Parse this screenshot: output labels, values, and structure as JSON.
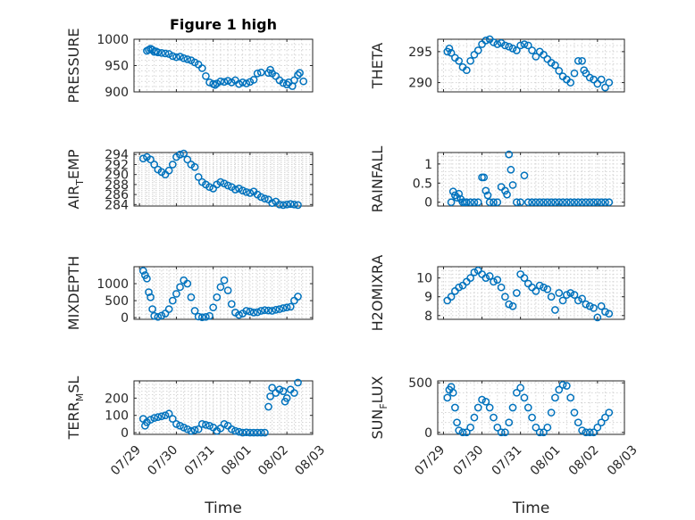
{
  "figure": {
    "width": 778,
    "height": 583
  },
  "chart_data": [
    {
      "type": "scatter",
      "title": "Figure 1 high",
      "ylabel": "PRESSURE",
      "ylim": [
        900,
        1000
      ],
      "yticks": [
        900,
        950,
        1000
      ],
      "ytick_labels": [
        "900",
        "950",
        "1000"
      ],
      "grid": true,
      "series": [
        {
          "x": [
            0.2,
            0.25,
            0.3,
            0.35,
            0.4,
            0.45,
            0.5,
            0.6,
            0.7,
            0.8,
            0.9,
            1.0,
            1.1,
            1.2,
            1.3,
            1.4,
            1.5,
            1.6,
            1.7,
            1.8,
            1.9,
            2.0,
            2.05,
            2.1,
            2.2,
            2.3,
            2.4,
            2.5,
            2.6,
            2.7,
            2.8,
            2.9,
            3.0,
            3.1,
            3.2,
            3.3,
            3.5,
            3.55,
            3.6,
            3.7,
            3.8,
            3.9,
            4.0,
            4.05,
            4.15,
            4.2,
            4.3,
            4.35,
            4.45
          ],
          "y": [
            978,
            980,
            982,
            980,
            976,
            977,
            975,
            974,
            973,
            972,
            968,
            966,
            967,
            964,
            962,
            960,
            956,
            952,
            945,
            930,
            918,
            915,
            913,
            916,
            920,
            919,
            921,
            918,
            922,
            915,
            918,
            916,
            919,
            923,
            935,
            937,
            936,
            942,
            935,
            930,
            922,
            917,
            914,
            918,
            911,
            922,
            932,
            936,
            920
          ]
        }
      ]
    },
    {
      "type": "scatter",
      "ylabel": "THETA",
      "ylim": [
        288.5,
        297
      ],
      "yticks": [
        290,
        295
      ],
      "ytick_labels": [
        "290",
        "295"
      ],
      "grid": true,
      "series": [
        {
          "x": [
            0.1,
            0.15,
            0.2,
            0.3,
            0.4,
            0.5,
            0.6,
            0.7,
            0.8,
            0.9,
            1.0,
            1.1,
            1.2,
            1.3,
            1.4,
            1.5,
            1.6,
            1.7,
            1.8,
            1.9,
            2.0,
            2.1,
            2.2,
            2.3,
            2.4,
            2.5,
            2.6,
            2.7,
            2.8,
            2.9,
            3.0,
            3.1,
            3.2,
            3.3,
            3.4,
            3.5,
            3.6,
            3.65,
            3.7,
            3.8,
            3.9,
            4.0,
            4.1,
            4.2,
            4.3
          ],
          "y": [
            295.0,
            295.5,
            294.8,
            294.0,
            293.5,
            292.5,
            292.0,
            293.5,
            294.5,
            295.2,
            296.2,
            296.8,
            297.0,
            296.5,
            296.2,
            296.4,
            296.0,
            295.8,
            295.5,
            295.2,
            296.0,
            296.2,
            296.0,
            295.2,
            294.2,
            295.0,
            294.5,
            293.8,
            293.2,
            292.8,
            291.9,
            291.0,
            290.5,
            290.0,
            291.5,
            293.5,
            293.5,
            292.0,
            291.5,
            290.8,
            290.5,
            289.8,
            290.5,
            289.2,
            290.0
          ]
        }
      ]
    },
    {
      "type": "scatter",
      "ylabel": "AIR_TEMP",
      "ylim": [
        283.7,
        294.4
      ],
      "yticks": [
        284,
        286,
        288,
        290,
        292,
        294
      ],
      "ytick_labels": [
        "284",
        "286",
        "288",
        "290",
        "292",
        "294"
      ],
      "grid": true,
      "series": [
        {
          "x": [
            0.1,
            0.2,
            0.3,
            0.4,
            0.5,
            0.6,
            0.7,
            0.8,
            0.9,
            1.0,
            1.1,
            1.2,
            1.3,
            1.4,
            1.5,
            1.6,
            1.7,
            1.8,
            1.9,
            2.0,
            2.1,
            2.2,
            2.3,
            2.4,
            2.5,
            2.6,
            2.7,
            2.8,
            2.9,
            3.0,
            3.1,
            3.2,
            3.3,
            3.4,
            3.5,
            3.6,
            3.7,
            3.8,
            3.9,
            4.0,
            4.1,
            4.2,
            4.3
          ],
          "y": [
            293.2,
            293.5,
            293.0,
            292.0,
            291.0,
            290.5,
            290.0,
            290.8,
            292.0,
            293.5,
            294.0,
            294.2,
            293.0,
            292.0,
            291.5,
            289.5,
            288.5,
            288.0,
            287.5,
            287.2,
            288.0,
            288.5,
            288.2,
            287.8,
            287.5,
            287.0,
            287.2,
            286.8,
            286.5,
            286.3,
            286.6,
            286.0,
            285.5,
            285.2,
            285.0,
            284.3,
            284.6,
            284.0,
            283.9,
            284.0,
            284.1,
            284.0,
            283.9
          ]
        }
      ]
    },
    {
      "type": "scatter",
      "ylabel": "RAINFALL",
      "ylim": [
        -0.1,
        1.3
      ],
      "yticks": [
        0,
        0.5,
        1
      ],
      "ytick_labels": [
        "0",
        "0.5",
        "1"
      ],
      "grid": true,
      "series": [
        {
          "x": [
            0.2,
            0.25,
            0.3,
            0.35,
            0.4,
            0.45,
            0.5,
            0.55,
            0.6,
            0.7,
            0.8,
            0.9,
            1.0,
            1.05,
            1.1,
            1.15,
            1.2,
            1.3,
            1.4,
            1.5,
            1.6,
            1.65,
            1.7,
            1.75,
            1.8,
            1.9,
            2.0,
            2.1,
            2.2,
            2.3,
            2.4,
            2.5,
            2.6,
            2.7,
            2.8,
            2.9,
            3.0,
            3.1,
            3.2,
            3.3,
            3.4,
            3.5,
            3.6,
            3.7,
            3.8,
            3.9,
            4.0,
            4.1,
            4.2,
            4.3
          ],
          "y": [
            0,
            0.28,
            0.18,
            0.12,
            0.22,
            0.08,
            0,
            0,
            0,
            0,
            0,
            0,
            0.65,
            0.65,
            0.3,
            0.18,
            0,
            0,
            0,
            0.4,
            0.3,
            0.2,
            1.25,
            0.85,
            0.45,
            0,
            0,
            0.7,
            0,
            0,
            0,
            0,
            0,
            0,
            0,
            0,
            0,
            0,
            0,
            0,
            0,
            0,
            0,
            0,
            0,
            0,
            0,
            0,
            0,
            0
          ]
        }
      ]
    },
    {
      "type": "scatter",
      "ylabel": "MIXDEPTH",
      "ylim": [
        -50,
        1500
      ],
      "yticks": [
        0,
        500,
        1000
      ],
      "ytick_labels": [
        "0",
        "500",
        "1000"
      ],
      "grid": true,
      "series": [
        {
          "x": [
            0.1,
            0.15,
            0.2,
            0.25,
            0.3,
            0.35,
            0.4,
            0.5,
            0.6,
            0.7,
            0.8,
            0.9,
            1.0,
            1.1,
            1.2,
            1.3,
            1.4,
            1.5,
            1.6,
            1.7,
            1.8,
            1.9,
            2.0,
            2.1,
            2.2,
            2.3,
            2.4,
            2.5,
            2.6,
            2.7,
            2.8,
            2.9,
            3.0,
            3.1,
            3.2,
            3.3,
            3.4,
            3.5,
            3.6,
            3.7,
            3.8,
            3.9,
            4.0,
            4.1,
            4.2,
            4.3
          ],
          "y": [
            1380,
            1250,
            1150,
            750,
            600,
            250,
            50,
            20,
            60,
            120,
            250,
            500,
            700,
            900,
            1100,
            1000,
            600,
            200,
            30,
            10,
            20,
            50,
            300,
            600,
            900,
            1100,
            800,
            400,
            150,
            80,
            120,
            200,
            180,
            150,
            160,
            200,
            220,
            210,
            200,
            230,
            250,
            280,
            300,
            320,
            500,
            620
          ]
        }
      ]
    },
    {
      "type": "scatter",
      "ylabel": "H2OMIXRA",
      "ylim": [
        7.8,
        10.6
      ],
      "yticks": [
        8,
        9,
        10
      ],
      "ytick_labels": [
        "8",
        "9",
        "10"
      ],
      "grid": true,
      "series": [
        {
          "x": [
            0.1,
            0.2,
            0.3,
            0.4,
            0.5,
            0.6,
            0.7,
            0.8,
            0.9,
            1.0,
            1.1,
            1.2,
            1.3,
            1.4,
            1.5,
            1.6,
            1.7,
            1.8,
            1.9,
            2.0,
            2.1,
            2.2,
            2.3,
            2.4,
            2.5,
            2.6,
            2.7,
            2.8,
            2.9,
            3.0,
            3.1,
            3.2,
            3.3,
            3.4,
            3.5,
            3.6,
            3.7,
            3.8,
            3.9,
            4.0,
            4.1,
            4.2,
            4.3
          ],
          "y": [
            8.8,
            9.0,
            9.3,
            9.5,
            9.6,
            9.8,
            10.0,
            10.3,
            10.4,
            10.2,
            10.0,
            10.1,
            9.8,
            9.9,
            9.5,
            9.0,
            8.6,
            8.5,
            9.2,
            10.2,
            10.0,
            9.7,
            9.5,
            9.3,
            9.6,
            9.5,
            9.4,
            9.0,
            8.3,
            9.2,
            8.8,
            9.1,
            9.2,
            9.1,
            8.8,
            8.9,
            8.6,
            8.5,
            8.4,
            7.9,
            8.5,
            8.2,
            8.1
          ]
        }
      ]
    },
    {
      "type": "scatter",
      "ylabel": "TERR_MSL",
      "ylim": [
        -10,
        300
      ],
      "yticks": [
        0,
        100,
        200
      ],
      "ytick_labels": [
        "0",
        "100",
        "200"
      ],
      "grid": true,
      "xticks": [
        0,
        1,
        2,
        3,
        4,
        5
      ],
      "xtick_labels": [
        "07/29",
        "07/30",
        "07/31",
        "08/01",
        "08/02",
        "08/03"
      ],
      "xlabel": "Time",
      "series": [
        {
          "x": [
            0.1,
            0.15,
            0.2,
            0.3,
            0.4,
            0.5,
            0.6,
            0.7,
            0.8,
            0.9,
            1.0,
            1.1,
            1.2,
            1.3,
            1.4,
            1.5,
            1.6,
            1.7,
            1.8,
            1.9,
            2.0,
            2.1,
            2.2,
            2.3,
            2.4,
            2.5,
            2.6,
            2.7,
            2.8,
            2.9,
            3.0,
            3.1,
            3.2,
            3.3,
            3.4,
            3.5,
            3.55,
            3.6,
            3.7,
            3.8,
            3.9,
            3.95,
            4.0,
            4.1,
            4.2,
            4.3
          ],
          "y": [
            80,
            40,
            60,
            75,
            85,
            90,
            95,
            100,
            110,
            80,
            50,
            40,
            30,
            20,
            10,
            15,
            20,
            50,
            45,
            40,
            30,
            10,
            25,
            50,
            40,
            20,
            10,
            5,
            0,
            2,
            0,
            0,
            0,
            0,
            0,
            150,
            210,
            260,
            230,
            250,
            240,
            180,
            200,
            250,
            230,
            290
          ]
        }
      ]
    },
    {
      "type": "scatter",
      "ylabel": "SUN_FLUX",
      "ylim": [
        -20,
        520
      ],
      "yticks": [
        0,
        500
      ],
      "ytick_labels": [
        "0",
        "500"
      ],
      "grid": true,
      "xticks": [
        0,
        1,
        2,
        3,
        4,
        5
      ],
      "xtick_labels": [
        "07/29",
        "07/30",
        "07/31",
        "08/01",
        "08/02",
        "08/03"
      ],
      "xlabel": "Time",
      "series": [
        {
          "x": [
            0.1,
            0.15,
            0.2,
            0.25,
            0.3,
            0.35,
            0.4,
            0.5,
            0.6,
            0.7,
            0.8,
            0.9,
            1.0,
            1.1,
            1.2,
            1.3,
            1.4,
            1.5,
            1.6,
            1.7,
            1.8,
            1.9,
            2.0,
            2.1,
            2.2,
            2.3,
            2.4,
            2.5,
            2.6,
            2.7,
            2.8,
            2.9,
            3.0,
            3.1,
            3.2,
            3.3,
            3.4,
            3.5,
            3.6,
            3.7,
            3.8,
            3.9,
            4.0,
            4.1,
            4.2,
            4.3
          ],
          "y": [
            350,
            430,
            460,
            400,
            250,
            100,
            20,
            0,
            0,
            50,
            150,
            250,
            330,
            310,
            250,
            150,
            50,
            0,
            0,
            100,
            250,
            400,
            450,
            350,
            250,
            150,
            50,
            0,
            0,
            50,
            200,
            350,
            430,
            480,
            470,
            350,
            200,
            100,
            20,
            0,
            0,
            0,
            50,
            100,
            150,
            200
          ]
        }
      ]
    }
  ]
}
